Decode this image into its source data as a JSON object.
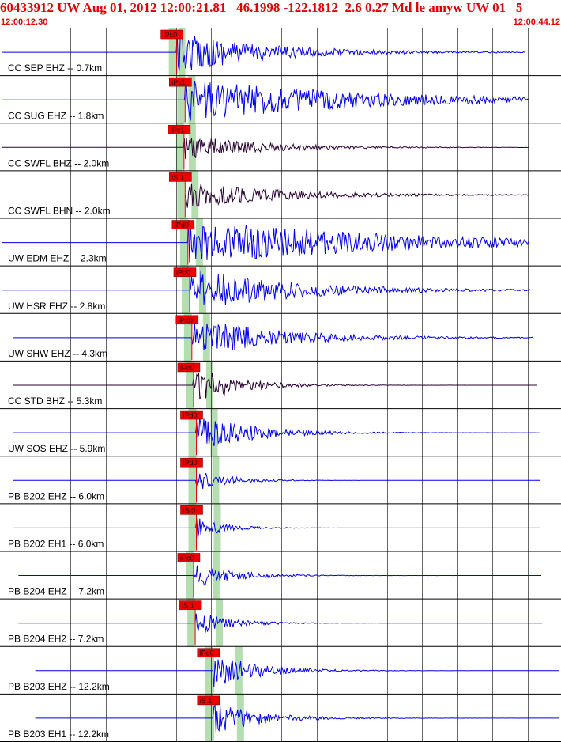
{
  "header": {
    "title": "60433912 UW Aug 01, 2012 12:00:21.81   46.1998 -122.1812  2.6 0.27 Md le amyw UW 01   5",
    "time_start": "12:00:12.30",
    "time_end": "12:00:44.12"
  },
  "colors": {
    "header_text": "#e00000",
    "trace_blue": "#0000ee",
    "trace_dark": "#2a0033",
    "pick_box": "#ee0000",
    "pick_shade": "#b5deb0",
    "grid": "#000000"
  },
  "chart_data": {
    "type": "seismogram",
    "x_range": [
      "12:00:12.30",
      "12:00:44.12"
    ],
    "grid": true,
    "traces": [
      {
        "label": "CC SEP EHZ -- 0.7km",
        "pick": "iPc0",
        "color": "blue",
        "start": 0.0,
        "pick_t": 0.315,
        "amp": 0.9,
        "decay": 0.16,
        "end": 0.94
      },
      {
        "label": "CC SUG EHZ -- 1.8km",
        "pick": "iPc1",
        "color": "blue",
        "start": 0.0,
        "pick_t": 0.33,
        "amp": 0.95,
        "decay": 0.3,
        "end": 0.945
      },
      {
        "label": "CC SWFL BHZ -- 2.0km",
        "pick": "iPc1",
        "color": "dark",
        "start": 0.0,
        "pick_t": 0.328,
        "amp": 0.55,
        "decay": 0.14,
        "end": 0.945
      },
      {
        "label": "CC SWFL BHN -- 2.0km",
        "pick": "iS 1",
        "color": "dark",
        "start": 0.0,
        "pick_t": 0.33,
        "amp": 0.55,
        "decay": 0.18,
        "end": 0.945
      },
      {
        "label": "UW EDM EHZ -- 2.3km",
        "pick": "iPd0",
        "color": "blue",
        "start": 0.0,
        "pick_t": 0.335,
        "amp": 1.0,
        "decay": 0.35,
        "end": 0.945
      },
      {
        "label": "UW HSR EHZ -- 2.8km",
        "pick": "iPd0",
        "color": "blue",
        "start": 0.0,
        "pick_t": 0.338,
        "amp": 0.95,
        "decay": 0.18,
        "end": 0.95
      },
      {
        "label": "UW SHW EHZ -- 4.3km",
        "pick": "iPd0",
        "color": "blue",
        "start": 0.02,
        "pick_t": 0.342,
        "amp": 0.85,
        "decay": 0.16,
        "end": 0.955
      },
      {
        "label": "CC STD BHZ -- 5.3km",
        "pick": "iPd0",
        "color": "dark",
        "start": 0.02,
        "pick_t": 0.345,
        "amp": 0.8,
        "decay": 0.08,
        "end": 0.96
      },
      {
        "label": "UW SOS EHZ -- 5.9km",
        "pick": "iPd0",
        "color": "blue",
        "start": 0.02,
        "pick_t": 0.35,
        "amp": 0.8,
        "decay": 0.1,
        "end": 0.965
      },
      {
        "label": "PB B202 EHZ -- 6.0km",
        "pick": "iPd0",
        "color": "blue",
        "start": 0.02,
        "pick_t": 0.35,
        "amp": 0.45,
        "decay": 0.06,
        "end": 0.965
      },
      {
        "label": "PB B202 EH1 -- 6.0km",
        "pick": "iS 0",
        "color": "blue",
        "start": 0.02,
        "pick_t": 0.35,
        "amp": 0.45,
        "decay": 0.05,
        "end": 0.965
      },
      {
        "label": "PB B204 EHZ -- 7.2km",
        "pick": "iPc0",
        "color": "blue",
        "start": 0.03,
        "pick_t": 0.345,
        "amp": 0.55,
        "decay": 0.07,
        "end": 0.968
      },
      {
        "label": "PB B204 EH2 -- 7.2km",
        "pick": "iS 1",
        "color": "blue",
        "start": 0.03,
        "pick_t": 0.348,
        "amp": 0.55,
        "decay": 0.06,
        "end": 0.97
      },
      {
        "label": "PB B203 EHZ -- 12.2km",
        "pick": "iPd0",
        "color": "blue",
        "start": 0.06,
        "pick_t": 0.38,
        "amp": 0.75,
        "decay": 0.08,
        "end": 1.0
      },
      {
        "label": "PB B203 EH1 -- 12.2km",
        "pick": "iS 1",
        "color": "blue",
        "start": 0.06,
        "pick_t": 0.38,
        "amp": 0.75,
        "decay": 0.08,
        "end": 1.0
      }
    ]
  }
}
